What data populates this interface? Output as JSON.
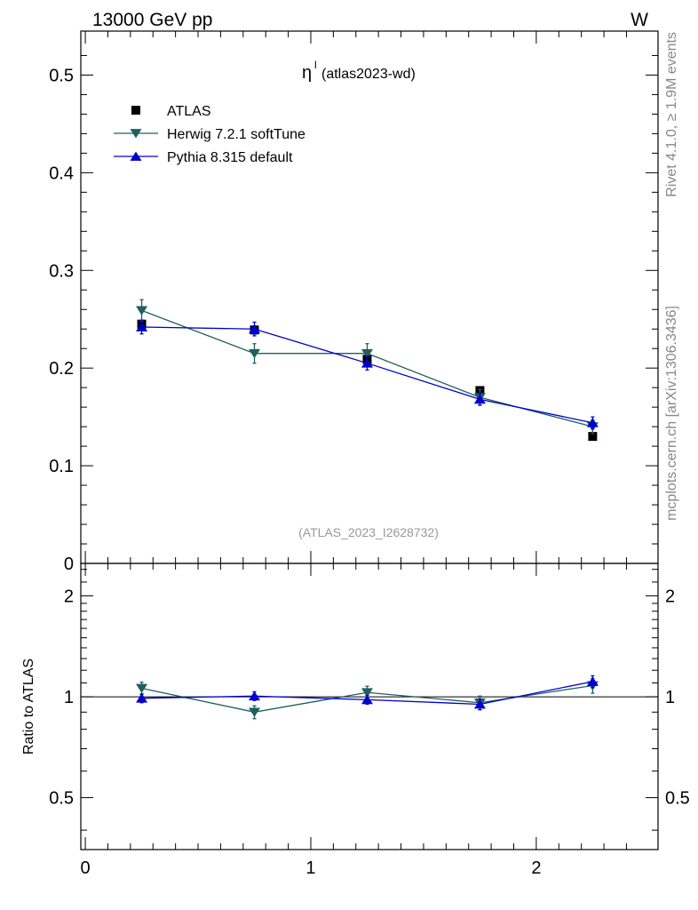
{
  "header": {
    "left": "13000 GeV pp",
    "right": "W"
  },
  "side_labels": {
    "upper": "Rivet 4.1.0, ≥ 1.9M events",
    "lower": "mcplots.cern.ch [arXiv:1306.3436]"
  },
  "colors": {
    "atlas": "#000000",
    "herwig": "#1f5f5f",
    "pythia": "#0000cc",
    "watermark": "#999999",
    "side_text": "#888888"
  },
  "chart_data": [
    {
      "type": "line",
      "panel": "main",
      "title_symbol": "η",
      "title_superscript": "l",
      "title": "(atlas2023-wd)",
      "watermark": "(ATLAS_2023_I2628732)",
      "xlabel": "",
      "ylabel": "",
      "xlim": [
        -0.02,
        2.54
      ],
      "ylim": [
        0,
        0.545
      ],
      "yticks": [
        0,
        0.1,
        0.2,
        0.3,
        0.4,
        0.5
      ],
      "ytick_labels": [
        "0",
        "0.1",
        "0.2",
        "0.3",
        "0.4",
        "0.5"
      ],
      "legend": "top-left",
      "x": [
        0.25,
        0.75,
        1.25,
        1.75,
        2.25
      ],
      "xerr": [
        0.25,
        0.25,
        0.25,
        0.25,
        0.25
      ],
      "series": [
        {
          "name": "ATLAS",
          "marker": "square",
          "values": [
            0.245,
            0.239,
            0.209,
            0.177,
            0.13
          ],
          "errors": [
            0.004,
            0.004,
            0.003,
            0.003,
            0.002
          ]
        },
        {
          "name": "Herwig 7.2.1 softTune",
          "marker": "triangle-down",
          "values": [
            0.259,
            0.215,
            0.215,
            0.17,
            0.14
          ],
          "errors": [
            0.011,
            0.01,
            0.01,
            0.008,
            0.007
          ]
        },
        {
          "name": "Pythia 8.315 default",
          "marker": "triangle-up",
          "values": [
            0.242,
            0.24,
            0.205,
            0.168,
            0.144
          ],
          "errors": [
            0.007,
            0.007,
            0.007,
            0.006,
            0.006
          ]
        }
      ]
    },
    {
      "type": "line",
      "panel": "ratio",
      "xlabel": "",
      "ylabel": "Ratio to ATLAS",
      "xlim": [
        -0.02,
        2.54
      ],
      "ylim": [
        0.35,
        2.5
      ],
      "log_y": true,
      "yticks": [
        0.5,
        1,
        2
      ],
      "ytick_labels": [
        "0.5",
        "1",
        "2"
      ],
      "xticks": [
        0,
        1,
        2
      ],
      "xtick_labels": [
        "0",
        "1",
        "2"
      ],
      "x": [
        0.25,
        0.75,
        1.25,
        1.75,
        2.25
      ],
      "series": [
        {
          "name": "Herwig 7.2.1 softTune",
          "marker": "triangle-down",
          "values": [
            1.06,
            0.9,
            1.03,
            0.96,
            1.08
          ],
          "errors": [
            0.045,
            0.04,
            0.045,
            0.045,
            0.055
          ]
        },
        {
          "name": "Pythia 8.315 default",
          "marker": "triangle-up",
          "values": [
            0.99,
            1.005,
            0.98,
            0.95,
            1.11
          ],
          "errors": [
            0.03,
            0.03,
            0.03,
            0.035,
            0.045
          ]
        }
      ]
    }
  ]
}
